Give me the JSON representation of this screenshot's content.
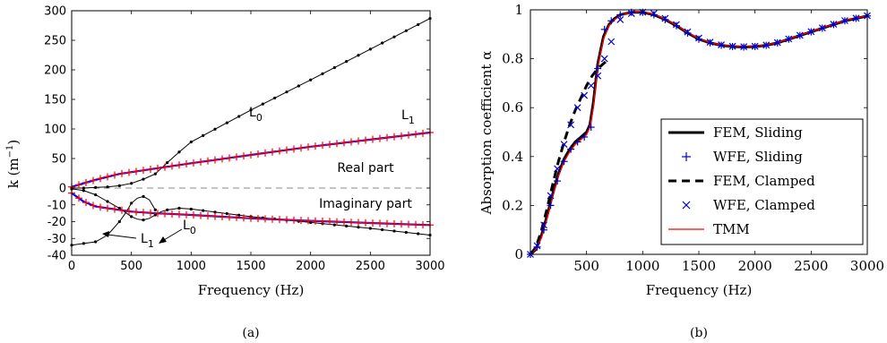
{
  "chart_data": [
    {
      "type": "line",
      "caption": "(a)",
      "xlabel": "Frequency (Hz)",
      "ylabel": "k (m",
      "ylabel_sup": "−1",
      "ylabel_end": ")",
      "xlim": [
        0,
        3000
      ],
      "ylim": [
        -40,
        300
      ],
      "xticks": [
        0,
        500,
        1000,
        1500,
        2000,
        2500,
        3000
      ],
      "yticks": [
        -40,
        -30,
        -20,
        -10,
        0,
        50,
        100,
        150,
        200,
        250,
        300
      ],
      "annotations": {
        "real_part": "Real part",
        "imag_part": "Imaginary part",
        "L0_real": "L",
        "L0_real_sub": "0",
        "L1_real": "L",
        "L1_real_sub": "1",
        "L1_imag": "L",
        "L1_imag_sub": "1",
        "L0_imag": "L",
        "L0_imag_sub": "0"
      },
      "series": [
        {
          "name": "L0 real",
          "color": "#000000",
          "x": [
            0,
            100,
            200,
            300,
            400,
            500,
            600,
            700,
            800,
            900,
            1000,
            1500,
            2000,
            2500,
            3000
          ],
          "y": [
            0,
            0,
            1,
            2,
            4,
            8,
            15,
            24,
            43,
            61,
            78,
            132,
            183,
            235,
            287
          ]
        },
        {
          "name": "L1 real",
          "color": "#0000ff",
          "x": [
            0,
            100,
            200,
            300,
            400,
            500,
            600,
            700,
            800,
            1000,
            1500,
            2000,
            2500,
            3000
          ],
          "y": [
            2,
            8,
            14,
            19,
            24,
            27,
            30,
            33,
            36,
            42,
            56,
            70,
            82,
            94
          ]
        },
        {
          "name": "L1 imag",
          "color": "#0000ff",
          "x": [
            0,
            100,
            200,
            300,
            400,
            500,
            600,
            700,
            800,
            1000,
            1500,
            2000,
            2500,
            3000
          ],
          "y": [
            -3,
            -8,
            -11,
            -12,
            -13,
            -14,
            -14.5,
            -15,
            -15.3,
            -16,
            -18,
            -19.5,
            -20.8,
            -22
          ]
        },
        {
          "name": "L0 imag",
          "color": "#000000",
          "x": [
            0,
            100,
            200,
            300,
            400,
            450,
            500,
            550,
            600,
            650,
            700,
            750,
            800,
            900,
            1000,
            1500,
            2000,
            2500,
            3000
          ],
          "y": [
            -0.5,
            -1.5,
            -4,
            -8,
            -12,
            -14.5,
            -17,
            -18.5,
            -19,
            -18,
            -16,
            -14,
            -13,
            -12,
            -12.5,
            -17,
            -20.5,
            -24,
            -28
          ]
        },
        {
          "name": "L1 imag branch",
          "color": "#000000",
          "x": [
            0,
            100,
            200,
            300,
            400,
            450,
            500,
            550,
            600,
            650,
            700
          ],
          "y": [
            -34,
            -33,
            -32,
            -28,
            -20,
            -15,
            -9,
            -6,
            -5,
            -7,
            -13
          ]
        },
        {
          "name": "zero line",
          "color": "#888888",
          "x": [
            0,
            3000
          ],
          "y": [
            0,
            0
          ]
        }
      ]
    },
    {
      "type": "line",
      "caption": "(b)",
      "xlabel": "Frequency (Hz)",
      "ylabel": "Absorption coefficient α",
      "xlim": [
        0,
        3000
      ],
      "ylim": [
        0,
        1
      ],
      "xticks": [
        500,
        1000,
        1500,
        2000,
        2500,
        3000
      ],
      "yticks": [
        0,
        0.2,
        0.4,
        0.6,
        0.8,
        1
      ],
      "legend_position": "bottom-right",
      "series": [
        {
          "name": "FEM, Sliding",
          "color": "#000000",
          "x": [
            0,
            50,
            100,
            150,
            200,
            250,
            300,
            350,
            400,
            450,
            500,
            530,
            560,
            600,
            650,
            700,
            750,
            800,
            900,
            1000,
            1100,
            1200,
            1300,
            1400,
            1500,
            1600,
            1700,
            1800,
            1900,
            2000,
            2100,
            2200,
            2300,
            2400,
            2500,
            2600,
            2700,
            2800,
            2900,
            3000
          ],
          "y": [
            0,
            0.02,
            0.08,
            0.16,
            0.25,
            0.33,
            0.39,
            0.43,
            0.46,
            0.48,
            0.5,
            0.53,
            0.62,
            0.78,
            0.89,
            0.94,
            0.965,
            0.98,
            0.99,
            0.99,
            0.98,
            0.96,
            0.935,
            0.905,
            0.88,
            0.865,
            0.855,
            0.85,
            0.848,
            0.85,
            0.855,
            0.865,
            0.88,
            0.895,
            0.91,
            0.925,
            0.94,
            0.955,
            0.965,
            0.975
          ]
        },
        {
          "name": "WFE, Sliding",
          "color": "#0000cc",
          "x": [
            0,
            60,
            120,
            180,
            240,
            300,
            360,
            420,
            480,
            540,
            600,
            660,
            720,
            800,
            900,
            1000,
            1100,
            1200,
            1300,
            1400,
            1500,
            1600,
            1700,
            1800,
            1900,
            2000,
            2100,
            2200,
            2300,
            2400,
            2500,
            2600,
            2700,
            2800,
            2900,
            3000
          ],
          "y": [
            0,
            0.03,
            0.1,
            0.2,
            0.3,
            0.38,
            0.43,
            0.46,
            0.48,
            0.52,
            0.76,
            0.92,
            0.955,
            0.98,
            0.99,
            0.99,
            0.98,
            0.96,
            0.935,
            0.905,
            0.88,
            0.865,
            0.855,
            0.85,
            0.848,
            0.85,
            0.855,
            0.865,
            0.88,
            0.895,
            0.91,
            0.925,
            0.94,
            0.955,
            0.965,
            0.975
          ]
        },
        {
          "name": "FEM, Clamped",
          "color": "#000000",
          "x": [
            0,
            50,
            100,
            150,
            200,
            250,
            300,
            350,
            400,
            450,
            500,
            550,
            600,
            650,
            700
          ],
          "y": [
            0,
            0.03,
            0.1,
            0.19,
            0.29,
            0.38,
            0.46,
            0.53,
            0.59,
            0.64,
            0.69,
            0.73,
            0.76,
            0.78,
            0.8
          ]
        },
        {
          "name": "WFE, Clamped",
          "color": "#0000cc",
          "x": [
            0,
            60,
            120,
            180,
            240,
            300,
            360,
            420,
            480,
            540,
            600,
            660,
            720,
            800,
            900,
            1000,
            1100,
            1200,
            1300,
            1400,
            1500,
            1600,
            1700,
            1800,
            1900,
            2000,
            2100,
            2200,
            2300,
            2400,
            2500,
            2600,
            2700,
            2800,
            2900,
            3000
          ],
          "y": [
            0,
            0.035,
            0.12,
            0.24,
            0.35,
            0.45,
            0.53,
            0.6,
            0.65,
            0.69,
            0.73,
            0.8,
            0.87,
            0.96,
            0.985,
            0.99,
            0.985,
            0.965,
            0.94,
            0.91,
            0.885,
            0.868,
            0.857,
            0.851,
            0.849,
            0.851,
            0.856,
            0.866,
            0.881,
            0.896,
            0.911,
            0.926,
            0.941,
            0.956,
            0.966,
            0.976
          ]
        },
        {
          "name": "TMM",
          "color": "#ff0000",
          "x": [
            0,
            50,
            100,
            150,
            200,
            250,
            300,
            350,
            400,
            450,
            500,
            530,
            560,
            600,
            650,
            700,
            750,
            800,
            900,
            1000,
            1100,
            1200,
            1300,
            1400,
            1500,
            1600,
            1700,
            1800,
            1900,
            2000,
            2100,
            2200,
            2300,
            2400,
            2500,
            2600,
            2700,
            2800,
            2900,
            3000
          ],
          "y": [
            0,
            0.02,
            0.07,
            0.15,
            0.24,
            0.32,
            0.38,
            0.42,
            0.45,
            0.47,
            0.49,
            0.52,
            0.6,
            0.77,
            0.88,
            0.935,
            0.96,
            0.978,
            0.99,
            0.992,
            0.982,
            0.962,
            0.937,
            0.907,
            0.882,
            0.866,
            0.856,
            0.851,
            0.849,
            0.851,
            0.856,
            0.866,
            0.881,
            0.896,
            0.911,
            0.926,
            0.941,
            0.956,
            0.966,
            0.976
          ]
        }
      ]
    }
  ]
}
